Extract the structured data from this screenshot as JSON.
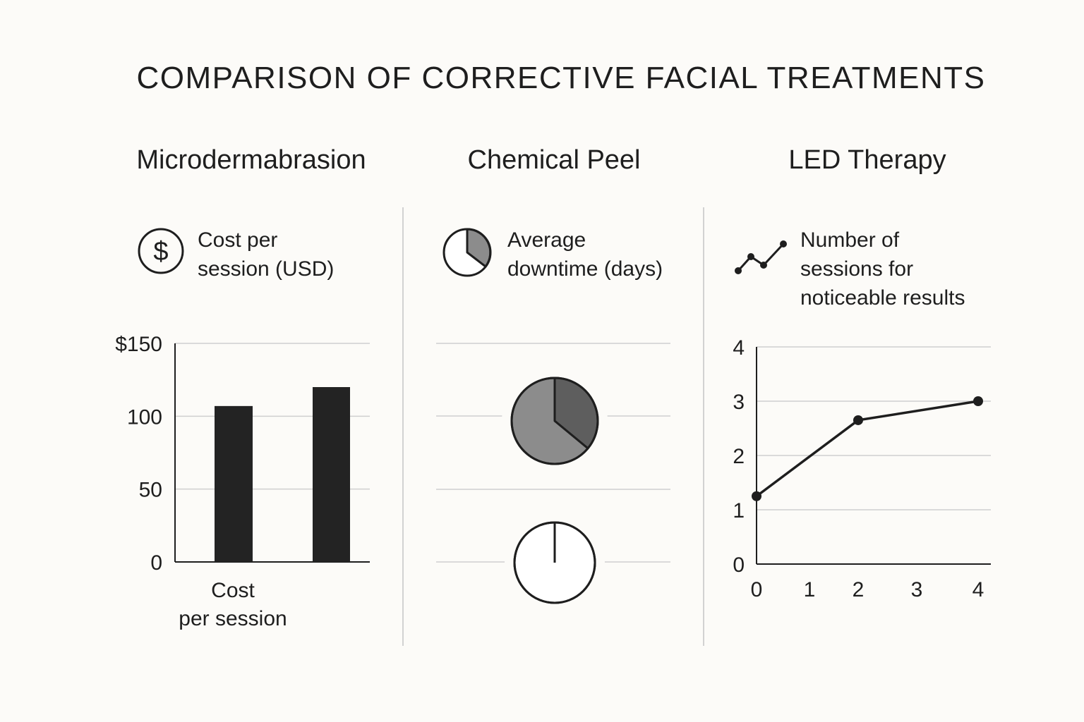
{
  "title": "COMPARISON OF CORRECTIVE FACIAL TREATMENTS",
  "columns": [
    {
      "title": "Microdermabrasion",
      "metric_line1": "Cost per",
      "metric_line2": "session (USD)",
      "icon": "dollar-icon"
    },
    {
      "title": "Chemical Peel",
      "metric_line1": "Average",
      "metric_line2": "downtime (days)",
      "icon": "pie-icon"
    },
    {
      "title": "LED Therapy",
      "metric_line1": "Number of",
      "metric_line2": "sessions for",
      "metric_line3": "noticeable results",
      "icon": "line-chart-icon"
    }
  ],
  "icon_glyph": "$",
  "colors": {
    "dark": "#232323",
    "pie_dark": "#5e5e5e",
    "pie_mid": "#8c8c8c",
    "grid": "#cfcfcf"
  },
  "chart_data": [
    {
      "type": "bar",
      "title": "Microdermabrasion",
      "ylabel": "Cost per session (USD)",
      "xlabel_line1": "Cost",
      "xlabel_line2": "per session",
      "yticks": [
        "$150",
        "100",
        "50",
        "0"
      ],
      "ytick_values": [
        150,
        100,
        50,
        0
      ],
      "ylim": [
        0,
        150
      ],
      "values": [
        107,
        120
      ]
    },
    {
      "type": "pie",
      "title": "Chemical Peel",
      "ylabel": "Average downtime (days)",
      "pies": [
        {
          "slices": [
            0.36,
            0.64
          ],
          "colors": [
            "#5e5e5e",
            "#8c8c8c"
          ]
        },
        {
          "slices": [
            0.0,
            1.0
          ],
          "colors": [
            "#5e5e5e",
            "#ffffff"
          ]
        }
      ]
    },
    {
      "type": "line",
      "title": "LED Therapy",
      "ylabel": "Number of sessions for noticeable results",
      "x": [
        0,
        2,
        4
      ],
      "y": [
        1.25,
        2.65,
        3.0
      ],
      "xticks": [
        "0",
        "1",
        "2",
        "3",
        "4"
      ],
      "xtick_values": [
        0,
        1,
        2,
        3,
        4
      ],
      "yticks": [
        "4",
        "3",
        "2",
        "1",
        "0"
      ],
      "ytick_values": [
        4,
        3,
        2,
        1,
        0
      ],
      "xlim": [
        0,
        4
      ],
      "ylim": [
        0,
        4
      ]
    }
  ]
}
